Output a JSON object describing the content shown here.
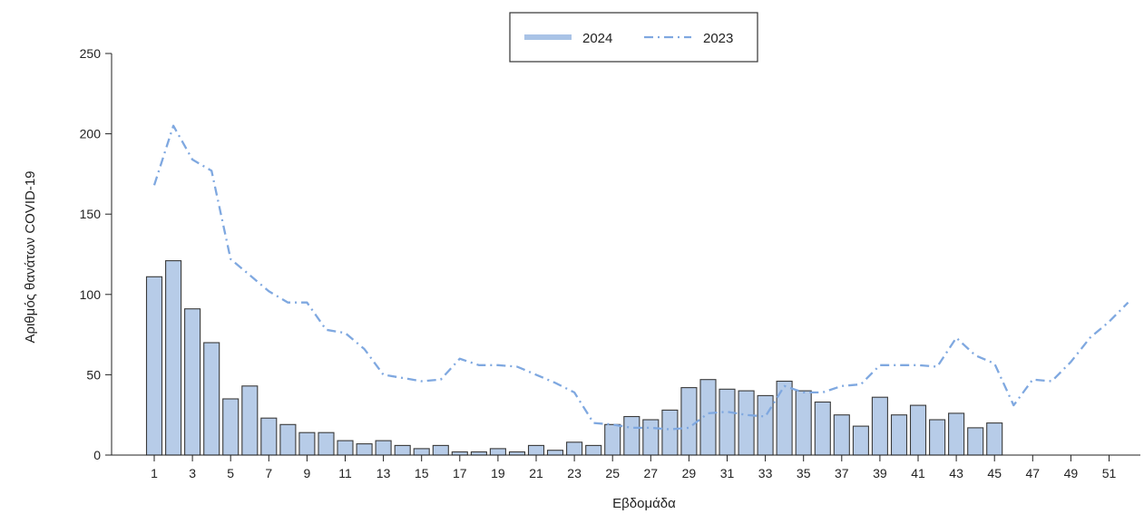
{
  "chart_data": {
    "type": "bar",
    "title": "",
    "xlabel": "Εβδομάδα",
    "ylabel": "Αριθμός θανάτων COVID-19",
    "ylim": [
      0,
      250
    ],
    "yticks": [
      0,
      50,
      100,
      150,
      200,
      250
    ],
    "xlim": [
      0,
      53
    ],
    "xticks": [
      1,
      3,
      5,
      7,
      9,
      11,
      13,
      15,
      17,
      19,
      21,
      23,
      25,
      27,
      29,
      31,
      33,
      35,
      37,
      39,
      41,
      43,
      45,
      47,
      49,
      51
    ],
    "grid": false,
    "legend_position": "top-center",
    "colors": {
      "bar_fill": "#b7cce8",
      "bar_stroke": "#3a3a3a",
      "line": "#7fa8e0",
      "legend_bar": "#a9c3e6"
    },
    "series": [
      {
        "name": "2024",
        "kind": "bar",
        "x": [
          1,
          2,
          3,
          4,
          5,
          6,
          7,
          8,
          9,
          10,
          11,
          12,
          13,
          14,
          15,
          16,
          17,
          18,
          19,
          20,
          21,
          22,
          23,
          24,
          25,
          26,
          27,
          28,
          29,
          30,
          31,
          32,
          33,
          34,
          35,
          36,
          37,
          38,
          39,
          40,
          41,
          42,
          43,
          44,
          45
        ],
        "values": [
          111,
          121,
          91,
          70,
          35,
          43,
          23,
          19,
          14,
          14,
          9,
          7,
          9,
          6,
          4,
          6,
          2,
          2,
          4,
          2,
          6,
          3,
          8,
          6,
          19,
          24,
          22,
          28,
          42,
          47,
          41,
          40,
          37,
          46,
          40,
          33,
          25,
          18,
          36,
          25,
          31,
          22,
          26,
          17,
          20
        ]
      },
      {
        "name": "2023",
        "kind": "line",
        "style": "dash-dot",
        "x": [
          1,
          2,
          3,
          4,
          5,
          6,
          7,
          8,
          9,
          10,
          11,
          12,
          13,
          14,
          15,
          16,
          17,
          18,
          19,
          20,
          21,
          22,
          23,
          24,
          25,
          26,
          27,
          28,
          29,
          30,
          31,
          32,
          33,
          34,
          35,
          36,
          37,
          38,
          39,
          40,
          41,
          42,
          43,
          44,
          45,
          46,
          47,
          48,
          49,
          50,
          51,
          52
        ],
        "values": [
          168,
          205,
          184,
          177,
          122,
          112,
          102,
          95,
          95,
          78,
          76,
          66,
          50,
          48,
          46,
          47,
          60,
          56,
          56,
          55,
          50,
          45,
          39,
          20,
          19,
          17,
          17,
          16,
          17,
          26,
          27,
          25,
          24,
          43,
          39,
          39,
          43,
          44,
          56,
          56,
          56,
          55,
          73,
          62,
          57,
          31,
          47,
          46,
          58,
          73,
          83,
          95
        ]
      }
    ]
  }
}
